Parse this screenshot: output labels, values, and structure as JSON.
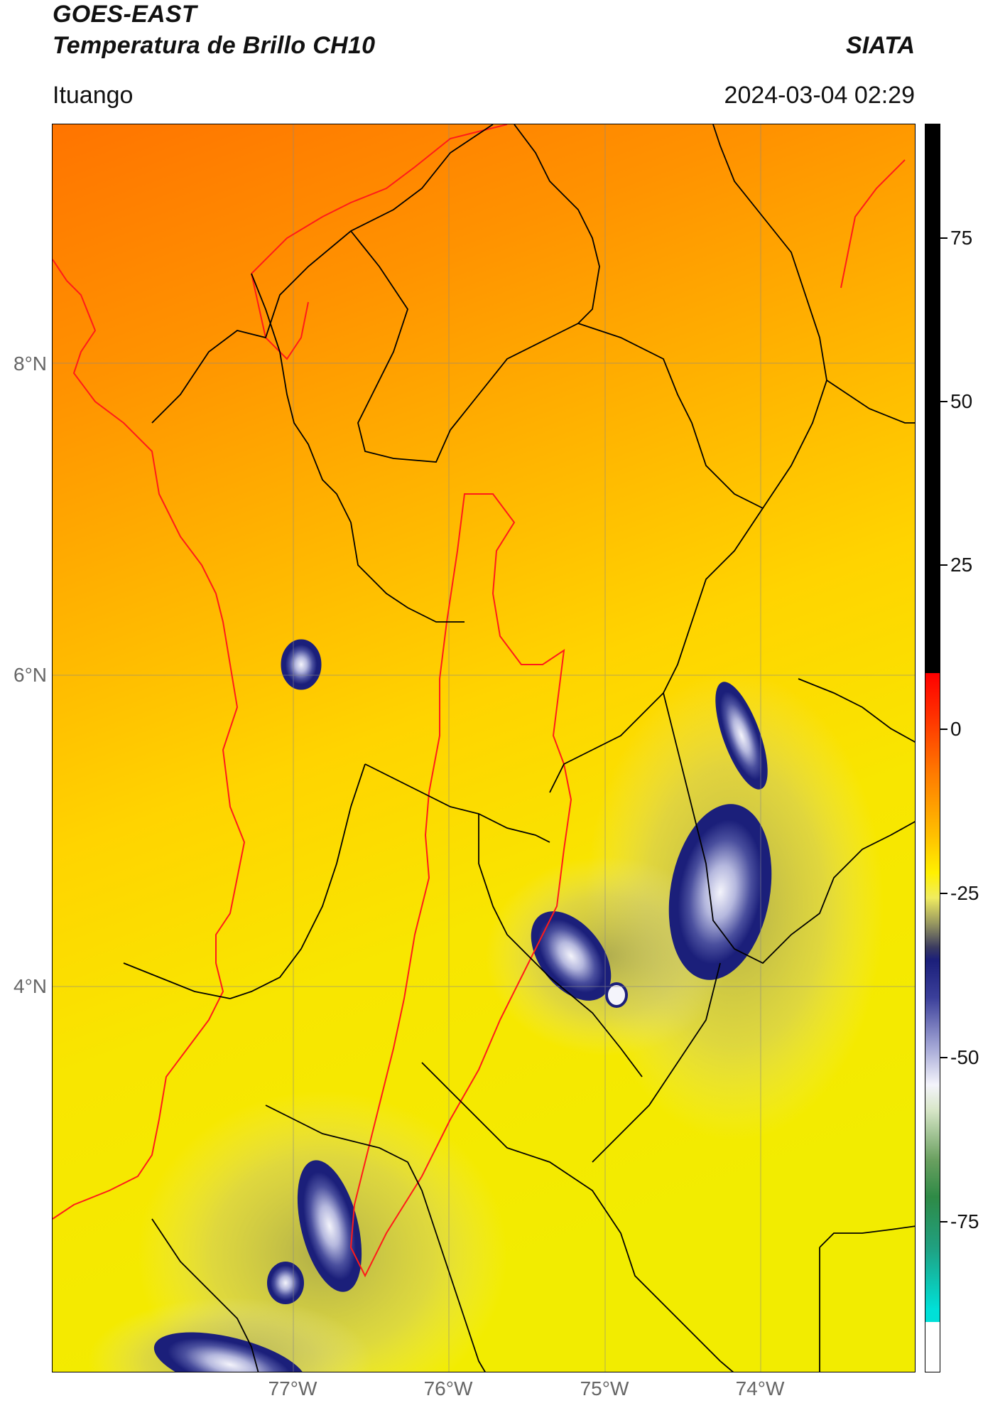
{
  "header": {
    "title_line1": "GOES-EAST",
    "title_line2": "Temperatura de Brillo CH10",
    "brand": "SIATA",
    "location": "Ituango",
    "timestamp": "2024-03-04 02:29"
  },
  "map": {
    "lat_labels": [
      "8°N",
      "6°N",
      "4°N"
    ],
    "lon_labels": [
      "77°W",
      "76°W",
      "75°W",
      "74°W"
    ],
    "colors": {
      "warm_orange": "#ff7a00",
      "orange": "#ff9c00",
      "yellow_orange": "#ffc400",
      "yellow": "#f6ee00",
      "pale_yellow": "#eae9a0",
      "olive": "#9a9a60",
      "navy": "#1b1f7a",
      "lavender": "#a4a7d6",
      "white_core": "#f4f4fb",
      "admin_boundary": "#000000",
      "coast_river": "#ff1a1a",
      "gridline": "#888888"
    }
  },
  "colorbar": {
    "labels": [
      "75",
      "50",
      "25",
      "0",
      "-25",
      "-50",
      "-75"
    ]
  }
}
